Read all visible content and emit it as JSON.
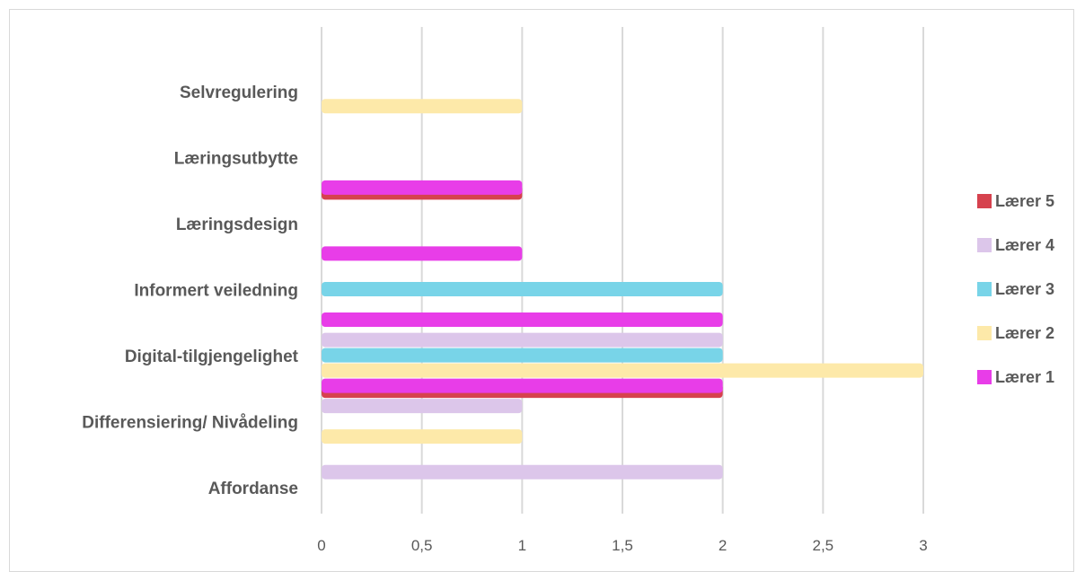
{
  "chart_data": {
    "type": "bar",
    "orientation": "horizontal",
    "title": "",
    "xlabel": "",
    "ylabel": "",
    "xlim": [
      0,
      3
    ],
    "x_ticks": [
      "0",
      "0,5",
      "1",
      "1,5",
      "2",
      "2,5",
      "3"
    ],
    "grid": true,
    "legend_position": "right",
    "categories": [
      "Affordanse",
      "Differensiering/ Nivådeling",
      "Digital-tilgjengelighet",
      "Informert veiledning",
      "Læringsdesign",
      "Læringsutbytte",
      "Selvregulering"
    ],
    "series": [
      {
        "name": "Lærer 1",
        "color": "#e83de8",
        "values": [
          0,
          0,
          2,
          2,
          1,
          1,
          0
        ]
      },
      {
        "name": "Lærer 2",
        "color": "#fde9a9",
        "values": [
          0,
          1,
          3,
          0,
          0,
          0,
          1
        ]
      },
      {
        "name": "Lærer 3",
        "color": "#78d4e8",
        "values": [
          0,
          0,
          2,
          2,
          0,
          0,
          0
        ]
      },
      {
        "name": "Lærer 4",
        "color": "#dcc6ea",
        "values": [
          2,
          1,
          2,
          0,
          0,
          0,
          0
        ]
      },
      {
        "name": "Lærer 5",
        "color": "#d6424e",
        "values": [
          0,
          2,
          0,
          0,
          1,
          0,
          0
        ]
      }
    ]
  }
}
